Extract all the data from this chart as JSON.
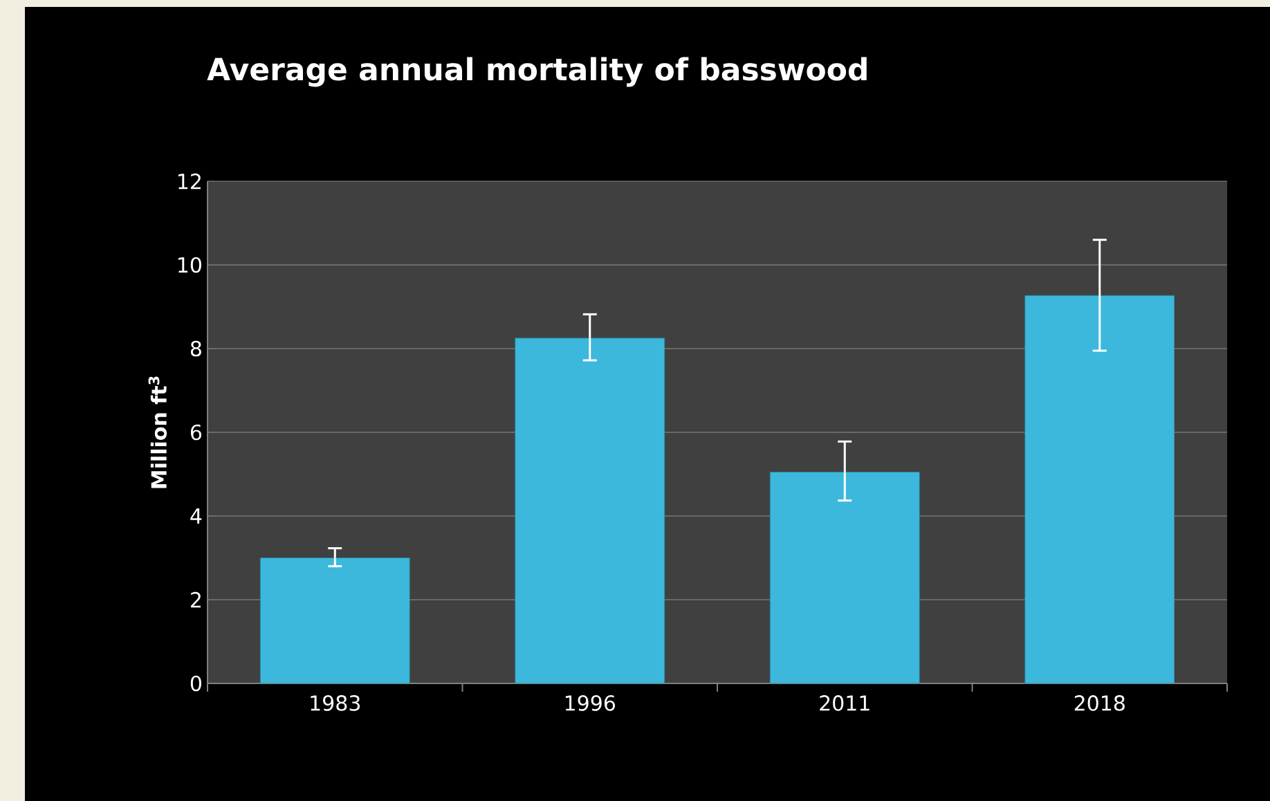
{
  "chart_data": {
    "type": "bar",
    "title": "Average annual mortality of basswood",
    "ylabel": "Million ft$^{3}$",
    "categories": [
      "1983",
      "1996",
      "2011",
      "2018"
    ],
    "values": [
      3.0,
      8.25,
      5.05,
      9.27
    ],
    "errors": [
      [
        2.8,
        3.23
      ],
      [
        7.72,
        8.82
      ],
      [
        4.37,
        5.78
      ],
      [
        7.95,
        10.6
      ]
    ],
    "color": "#3cb8dc",
    "ylim": [
      0,
      12
    ],
    "yticks": [
      0,
      2,
      4,
      6,
      8,
      10,
      12
    ],
    "grid": "y"
  }
}
